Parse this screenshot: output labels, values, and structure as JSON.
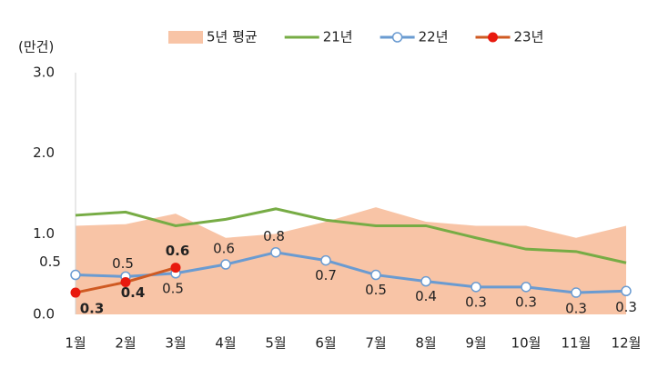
{
  "chart_data": {
    "type": "line",
    "y_label": "(만건)",
    "categories": [
      "1월",
      "2월",
      "3월",
      "4월",
      "5월",
      "6월",
      "7월",
      "8월",
      "9월",
      "10월",
      "11월",
      "12월"
    ],
    "ylim": [
      0,
      3
    ],
    "yticks": [
      {
        "value": 0,
        "label": "0.0"
      },
      {
        "value": 1,
        "label": "1.0"
      },
      {
        "value": 2,
        "label": "2.0"
      },
      {
        "value": 3,
        "label": "3.0"
      }
    ],
    "grid": false,
    "legend": "top",
    "series": [
      {
        "name": "5년 평균",
        "kind": "area",
        "color": "#f8c4a6",
        "values": [
          1.1,
          1.12,
          1.25,
          0.95,
          1.0,
          1.15,
          1.33,
          1.15,
          1.1,
          1.1,
          0.95,
          1.1
        ]
      },
      {
        "name": "21년",
        "kind": "line",
        "color": "#77ac45",
        "values": [
          1.23,
          1.27,
          1.1,
          1.18,
          1.31,
          1.17,
          1.1,
          1.1,
          0.95,
          0.81,
          0.78,
          0.64
        ]
      },
      {
        "name": "22년",
        "kind": "line",
        "color": "#6a9bd1",
        "marker": "hollow",
        "values": [
          0.49,
          0.47,
          0.51,
          0.62,
          0.77,
          0.67,
          0.49,
          0.41,
          0.34,
          0.34,
          0.27,
          0.29
        ],
        "value_labels": [
          "0.5",
          "0.5",
          "0.5",
          "0.6",
          "0.8",
          "0.7",
          "0.5",
          "0.4",
          "0.3",
          "0.3",
          "0.3",
          "0.3"
        ]
      },
      {
        "name": "23년",
        "kind": "line",
        "color": "#cf5a22",
        "marker": "filled",
        "marker_color": "#e8190e",
        "values": [
          0.27,
          0.4,
          0.58,
          null,
          null,
          null,
          null,
          null,
          null,
          null,
          null,
          null
        ],
        "value_labels": [
          "0.3",
          "0.4",
          "0.6",
          null,
          null,
          null,
          null,
          null,
          null,
          null,
          null,
          null
        ]
      }
    ]
  }
}
